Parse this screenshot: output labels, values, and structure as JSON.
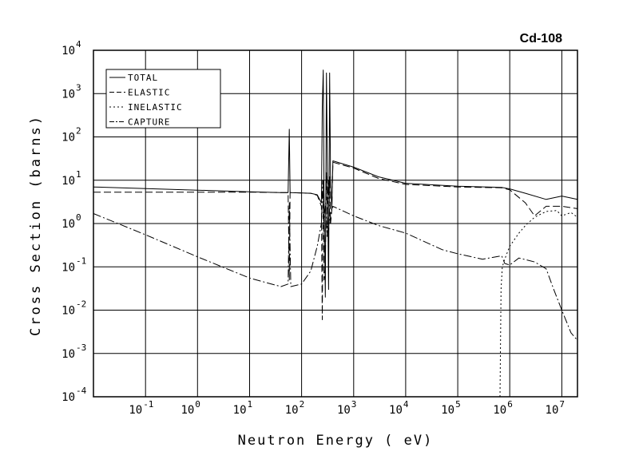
{
  "chart_data": {
    "type": "line",
    "title": "Cd-108",
    "xlabel": "Neutron Energy ( eV)",
    "ylabel": "Cross Section (barns)",
    "x_scale": "log",
    "y_scale": "log",
    "xlim": [
      0.01,
      20000000
    ],
    "ylim": [
      0.0001,
      10000
    ],
    "grid": true,
    "legend_position": "top-left",
    "x_ticks": [
      {
        "base": "10",
        "exp": "-1",
        "value": 0.1
      },
      {
        "base": "10",
        "exp": "0",
        "value": 1
      },
      {
        "base": "10",
        "exp": "1",
        "value": 10
      },
      {
        "base": "10",
        "exp": "2",
        "value": 100
      },
      {
        "base": "10",
        "exp": "3",
        "value": 1000
      },
      {
        "base": "10",
        "exp": "4",
        "value": 10000
      },
      {
        "base": "10",
        "exp": "5",
        "value": 100000
      },
      {
        "base": "10",
        "exp": "6",
        "value": 1000000
      },
      {
        "base": "10",
        "exp": "7",
        "value": 10000000
      }
    ],
    "y_ticks": [
      {
        "base": "10",
        "exp": "-4",
        "value": 0.0001
      },
      {
        "base": "10",
        "exp": "-3",
        "value": 0.001
      },
      {
        "base": "10",
        "exp": "-2",
        "value": 0.01
      },
      {
        "base": "10",
        "exp": "-1",
        "value": 0.1
      },
      {
        "base": "10",
        "exp": "0",
        "value": 1
      },
      {
        "base": "10",
        "exp": "1",
        "value": 10
      },
      {
        "base": "10",
        "exp": "2",
        "value": 100
      },
      {
        "base": "10",
        "exp": "3",
        "value": 1000
      },
      {
        "base": "10",
        "exp": "4",
        "value": 10000
      }
    ],
    "series": [
      {
        "name": "TOTAL",
        "dash": "",
        "points": [
          [
            0.01,
            7.0
          ],
          [
            1,
            5.9
          ],
          [
            10,
            5.4
          ],
          [
            40,
            5.2
          ],
          [
            55,
            5.2
          ],
          [
            58,
            150
          ],
          [
            60,
            5.2
          ],
          [
            150,
            5.0
          ],
          [
            200,
            4.6
          ],
          [
            240,
            3.0
          ],
          [
            250,
            500
          ],
          [
            260,
            3500
          ],
          [
            270,
            5.0
          ],
          [
            285,
            0.02
          ],
          [
            300,
            3000
          ],
          [
            315,
            8.0
          ],
          [
            330,
            0.03
          ],
          [
            345,
            3000
          ],
          [
            360,
            10
          ],
          [
            380,
            2.0
          ],
          [
            400,
            28
          ],
          [
            1000,
            20
          ],
          [
            3000,
            12
          ],
          [
            10000,
            8.5
          ],
          [
            100000,
            7.3
          ],
          [
            700000,
            6.8
          ],
          [
            1000000,
            6.3
          ],
          [
            2000000,
            5.0
          ],
          [
            5000000,
            3.6
          ],
          [
            10000000,
            4.3
          ],
          [
            20000000,
            3.6
          ]
        ]
      },
      {
        "name": "ELASTIC",
        "dash": "9,4",
        "points": [
          [
            0.01,
            5.3
          ],
          [
            1,
            5.3
          ],
          [
            10,
            5.3
          ],
          [
            40,
            5.2
          ],
          [
            55,
            5.2
          ],
          [
            58,
            0.05
          ],
          [
            60,
            5.2
          ],
          [
            150,
            5.0
          ],
          [
            200,
            4.5
          ],
          [
            240,
            2.5
          ],
          [
            250,
            0.006
          ],
          [
            260,
            10
          ],
          [
            270,
            0.05
          ],
          [
            285,
            0.1
          ],
          [
            300,
            15
          ],
          [
            315,
            1.0
          ],
          [
            330,
            0.5
          ],
          [
            345,
            12
          ],
          [
            360,
            1.0
          ],
          [
            380,
            2.0
          ],
          [
            400,
            26
          ],
          [
            1000,
            19
          ],
          [
            3000,
            11
          ],
          [
            10000,
            8.0
          ],
          [
            100000,
            7.0
          ],
          [
            700000,
            6.7
          ],
          [
            1000000,
            6.0
          ],
          [
            2000000,
            3.0
          ],
          [
            3000000,
            1.5
          ],
          [
            5000000,
            2.5
          ],
          [
            10000000,
            2.5
          ],
          [
            20000000,
            2.2
          ]
        ]
      },
      {
        "name": "INELASTIC",
        "dash": "2,3",
        "points": [
          [
            650000,
            0.0001
          ],
          [
            680000,
            0.03
          ],
          [
            720000,
            0.1
          ],
          [
            800000,
            0.15
          ],
          [
            1000000,
            0.3
          ],
          [
            1500000,
            0.6
          ],
          [
            2000000,
            0.9
          ],
          [
            3000000,
            1.4
          ],
          [
            5000000,
            1.9
          ],
          [
            8000000,
            2.0
          ],
          [
            10000000,
            1.5
          ],
          [
            15000000,
            1.8
          ],
          [
            20000000,
            1.4
          ]
        ]
      },
      {
        "name": "CAPTURE",
        "dash": "10,3,2,3",
        "points": [
          [
            0.01,
            1.7
          ],
          [
            0.1,
            0.55
          ],
          [
            1,
            0.17
          ],
          [
            10,
            0.055
          ],
          [
            40,
            0.035
          ],
          [
            55,
            0.04
          ],
          [
            58,
            3.0
          ],
          [
            62,
            0.035
          ],
          [
            100,
            0.04
          ],
          [
            150,
            0.08
          ],
          [
            200,
            0.3
          ],
          [
            240,
            1.0
          ],
          [
            255,
            10
          ],
          [
            270,
            1.0
          ],
          [
            290,
            3.0
          ],
          [
            310,
            0.5
          ],
          [
            330,
            10
          ],
          [
            350,
            1.0
          ],
          [
            370,
            2.0
          ],
          [
            400,
            2.5
          ],
          [
            1000,
            1.5
          ],
          [
            3000,
            0.9
          ],
          [
            10000,
            0.6
          ],
          [
            50000,
            0.25
          ],
          [
            100000,
            0.2
          ],
          [
            300000,
            0.15
          ],
          [
            700000,
            0.18
          ],
          [
            800000,
            0.12
          ],
          [
            1000000,
            0.11
          ],
          [
            1500000,
            0.16
          ],
          [
            3000000,
            0.13
          ],
          [
            5000000,
            0.09
          ],
          [
            7000000,
            0.03
          ],
          [
            10000000,
            0.01
          ],
          [
            15000000,
            0.003
          ],
          [
            20000000,
            0.002
          ]
        ]
      }
    ]
  }
}
